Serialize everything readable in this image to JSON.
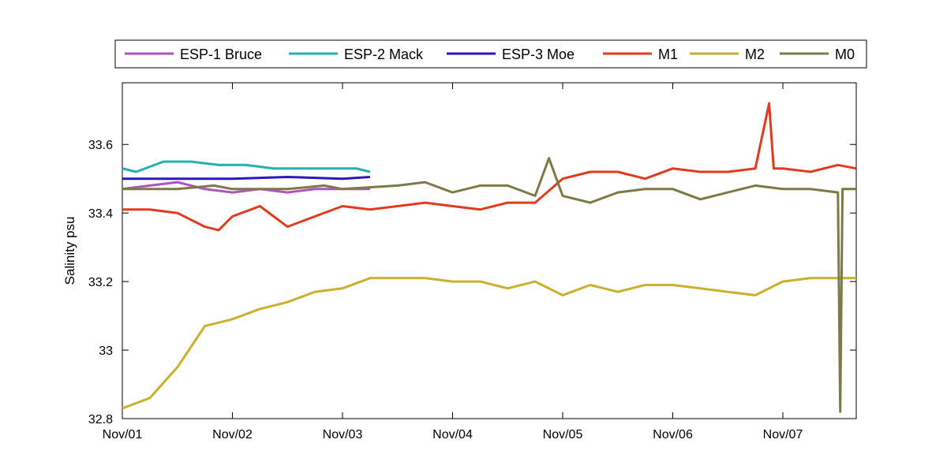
{
  "chart_data": {
    "type": "line",
    "title": "",
    "xlabel": "",
    "ylabel": "Salinity psu",
    "x_ticks": [
      "Nov/01",
      "Nov/02",
      "Nov/03",
      "Nov/04",
      "Nov/05",
      "Nov/06",
      "Nov/07"
    ],
    "xlim": [
      "2023-11-01T00:00",
      "2023-11-07T16:00"
    ],
    "ylim": [
      32.8,
      33.78
    ],
    "y_ticks": [
      32.8,
      33,
      33.2,
      33.4,
      33.6
    ],
    "y_tick_labels": [
      "32.8",
      "33",
      "33.2",
      "33.4",
      "33.6"
    ],
    "grid": false,
    "legend_placement": "top-outside",
    "series": [
      {
        "name": "ESP-1 Bruce",
        "color": "#b152c3",
        "x": [
          "2023-11-01T00:00",
          "2023-11-01T06:00",
          "2023-11-01T12:00",
          "2023-11-01T18:00",
          "2023-11-02T00:00",
          "2023-11-02T06:00",
          "2023-11-02T12:00",
          "2023-11-02T18:00",
          "2023-11-03T00:00",
          "2023-11-03T06:00"
        ],
        "y": [
          33.47,
          33.48,
          33.49,
          33.47,
          33.46,
          33.47,
          33.46,
          33.47,
          33.47,
          33.47
        ]
      },
      {
        "name": "ESP-2 Mack",
        "color": "#22b1ae",
        "x": [
          "2023-11-01T00:00",
          "2023-11-01T03:00",
          "2023-11-01T09:00",
          "2023-11-01T15:00",
          "2023-11-01T21:00",
          "2023-11-02T03:00",
          "2023-11-02T09:00",
          "2023-11-02T15:00",
          "2023-11-02T21:00",
          "2023-11-03T03:00",
          "2023-11-03T06:00"
        ],
        "y": [
          33.53,
          33.52,
          33.55,
          33.55,
          33.54,
          33.54,
          33.53,
          33.53,
          33.53,
          33.53,
          33.52
        ]
      },
      {
        "name": "ESP-3 Moe",
        "color": "#2b16c4",
        "x": [
          "2023-11-01T00:00",
          "2023-11-01T12:00",
          "2023-11-02T00:00",
          "2023-11-02T12:00",
          "2023-11-03T00:00",
          "2023-11-03T06:00"
        ],
        "y": [
          33.5,
          33.5,
          33.5,
          33.505,
          33.5,
          33.505
        ]
      },
      {
        "name": "M1",
        "color": "#e03b1f",
        "x": [
          "2023-11-01T00:00",
          "2023-11-01T06:00",
          "2023-11-01T12:00",
          "2023-11-01T18:00",
          "2023-11-01T21:00",
          "2023-11-02T00:00",
          "2023-11-02T06:00",
          "2023-11-02T12:00",
          "2023-11-02T18:00",
          "2023-11-03T00:00",
          "2023-11-03T06:00",
          "2023-11-03T12:00",
          "2023-11-03T18:00",
          "2023-11-04T00:00",
          "2023-11-04T06:00",
          "2023-11-04T12:00",
          "2023-11-04T18:00",
          "2023-11-05T00:00",
          "2023-11-05T06:00",
          "2023-11-05T12:00",
          "2023-11-05T18:00",
          "2023-11-06T00:00",
          "2023-11-06T06:00",
          "2023-11-06T12:00",
          "2023-11-06T18:00",
          "2023-11-06T21:00",
          "2023-11-06T22:00",
          "2023-11-07T00:00",
          "2023-11-07T06:00",
          "2023-11-07T12:00",
          "2023-11-07T16:00"
        ],
        "y": [
          33.41,
          33.41,
          33.4,
          33.36,
          33.35,
          33.39,
          33.42,
          33.36,
          33.39,
          33.42,
          33.41,
          33.42,
          33.43,
          33.42,
          33.41,
          33.43,
          33.43,
          33.5,
          33.52,
          33.52,
          33.5,
          33.53,
          33.52,
          33.52,
          33.53,
          33.72,
          33.53,
          33.53,
          33.52,
          33.54,
          33.53
        ]
      },
      {
        "name": "M2",
        "color": "#cbb030",
        "x": [
          "2023-11-01T00:00",
          "2023-11-01T06:00",
          "2023-11-01T12:00",
          "2023-11-01T18:00",
          "2023-11-02T00:00",
          "2023-11-02T06:00",
          "2023-11-02T12:00",
          "2023-11-02T18:00",
          "2023-11-03T00:00",
          "2023-11-03T06:00",
          "2023-11-03T12:00",
          "2023-11-03T18:00",
          "2023-11-04T00:00",
          "2023-11-04T06:00",
          "2023-11-04T12:00",
          "2023-11-04T18:00",
          "2023-11-05T00:00",
          "2023-11-05T06:00",
          "2023-11-05T12:00",
          "2023-11-05T18:00",
          "2023-11-06T00:00",
          "2023-11-06T06:00",
          "2023-11-06T12:00",
          "2023-11-06T18:00",
          "2023-11-07T00:00",
          "2023-11-07T06:00",
          "2023-11-07T12:00",
          "2023-11-07T16:00"
        ],
        "y": [
          32.83,
          32.86,
          32.95,
          33.07,
          33.09,
          33.12,
          33.14,
          33.17,
          33.18,
          33.21,
          33.21,
          33.21,
          33.2,
          33.2,
          33.18,
          33.2,
          33.16,
          33.19,
          33.17,
          33.19,
          33.19,
          33.18,
          33.17,
          33.16,
          33.2,
          33.21,
          33.21,
          33.21
        ]
      },
      {
        "name": "M0",
        "color": "#7d7a48",
        "x": [
          "2023-11-01T00:00",
          "2023-11-01T12:00",
          "2023-11-01T20:00",
          "2023-11-02T00:00",
          "2023-11-02T12:00",
          "2023-11-02T20:00",
          "2023-11-03T00:00",
          "2023-11-03T12:00",
          "2023-11-03T18:00",
          "2023-11-04T00:00",
          "2023-11-04T06:00",
          "2023-11-04T12:00",
          "2023-11-04T18:00",
          "2023-11-04T21:00",
          "2023-11-05T00:00",
          "2023-11-05T06:00",
          "2023-11-05T12:00",
          "2023-11-05T18:00",
          "2023-11-06T00:00",
          "2023-11-06T06:00",
          "2023-11-06T12:00",
          "2023-11-06T18:00",
          "2023-11-07T00:00",
          "2023-11-07T06:00",
          "2023-11-07T12:00",
          "2023-11-07T12:30",
          "2023-11-07T13:00",
          "2023-11-07T16:00"
        ],
        "y": [
          33.47,
          33.47,
          33.48,
          33.47,
          33.47,
          33.48,
          33.47,
          33.48,
          33.49,
          33.46,
          33.48,
          33.48,
          33.45,
          33.56,
          33.45,
          33.43,
          33.46,
          33.47,
          33.47,
          33.44,
          33.46,
          33.48,
          33.47,
          33.47,
          33.46,
          32.82,
          33.47,
          33.47
        ]
      }
    ]
  }
}
